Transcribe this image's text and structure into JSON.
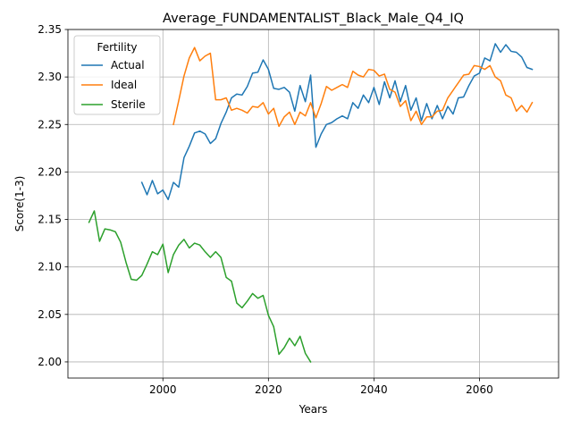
{
  "chart_data": {
    "type": "line",
    "title": "Average_FUNDAMENTALIST_Black_Male_Q4_IQ",
    "xlabel": "Years",
    "ylabel": "Score(1-3)",
    "xlim": [
      1982,
      2075
    ],
    "ylim": [
      1.983,
      2.35
    ],
    "xticks": [
      2000,
      2020,
      2040,
      2060
    ],
    "yticks": [
      2.0,
      2.05,
      2.1,
      2.15,
      2.2,
      2.25,
      2.3,
      2.35
    ],
    "xtick_labels": [
      "2000",
      "2020",
      "2040",
      "2060"
    ],
    "ytick_labels": [
      "2.00",
      "2.05",
      "2.10",
      "2.15",
      "2.20",
      "2.25",
      "2.30",
      "2.35"
    ],
    "grid": true,
    "legend": {
      "title": "Fertility",
      "placement": "top-left"
    },
    "series": [
      {
        "name": "Actual",
        "color": "#1f77b4",
        "x": [
          1996,
          1997,
          1998,
          1999,
          2000,
          2001,
          2002,
          2003,
          2004,
          2005,
          2006,
          2007,
          2008,
          2009,
          2010,
          2011,
          2012,
          2013,
          2014,
          2015,
          2016,
          2017,
          2018,
          2019,
          2020,
          2021,
          2022,
          2023,
          2024,
          2025,
          2026,
          2027,
          2028,
          2029,
          2030,
          2031,
          2032,
          2033,
          2034,
          2035,
          2036,
          2037,
          2038,
          2039,
          2040,
          2041,
          2042,
          2043,
          2044,
          2045,
          2046,
          2047,
          2048,
          2049,
          2050,
          2051,
          2052,
          2053,
          2054,
          2055,
          2056,
          2057,
          2058,
          2059,
          2060,
          2061,
          2062,
          2063,
          2064,
          2065,
          2066,
          2067,
          2068,
          2069,
          2070
        ],
        "y": [
          2.189,
          2.176,
          2.191,
          2.177,
          2.181,
          2.171,
          2.189,
          2.184,
          2.215,
          2.227,
          2.241,
          2.243,
          2.24,
          2.23,
          2.235,
          2.251,
          2.263,
          2.278,
          2.282,
          2.281,
          2.29,
          2.304,
          2.305,
          2.318,
          2.308,
          2.288,
          2.287,
          2.289,
          2.284,
          2.264,
          2.291,
          2.274,
          2.302,
          2.226,
          2.24,
          2.25,
          2.252,
          2.256,
          2.259,
          2.256,
          2.273,
          2.267,
          2.281,
          2.273,
          2.289,
          2.271,
          2.295,
          2.278,
          2.296,
          2.274,
          2.291,
          2.265,
          2.278,
          2.254,
          2.272,
          2.256,
          2.27,
          2.256,
          2.269,
          2.261,
          2.278,
          2.279,
          2.291,
          2.301,
          2.304,
          2.32,
          2.317,
          2.335,
          2.326,
          2.334,
          2.327,
          2.326,
          2.321,
          2.31,
          2.308
        ]
      },
      {
        "name": "Ideal",
        "color": "#ff7f0e",
        "x": [
          2002,
          2003,
          2004,
          2005,
          2006,
          2007,
          2008,
          2009,
          2010,
          2011,
          2012,
          2013,
          2014,
          2015,
          2016,
          2017,
          2018,
          2019,
          2020,
          2021,
          2022,
          2023,
          2024,
          2025,
          2026,
          2027,
          2028,
          2029,
          2030,
          2031,
          2032,
          2033,
          2034,
          2035,
          2036,
          2037,
          2038,
          2039,
          2040,
          2041,
          2042,
          2043,
          2044,
          2045,
          2046,
          2047,
          2048,
          2049,
          2050,
          2051,
          2052,
          2053,
          2054,
          2055,
          2056,
          2057,
          2058,
          2059,
          2060,
          2061,
          2062,
          2063,
          2064,
          2065,
          2066,
          2067,
          2068,
          2069,
          2070
        ],
        "y": [
          2.25,
          2.275,
          2.301,
          2.32,
          2.331,
          2.317,
          2.322,
          2.325,
          2.276,
          2.276,
          2.278,
          2.265,
          2.267,
          2.265,
          2.262,
          2.269,
          2.268,
          2.273,
          2.261,
          2.267,
          2.248,
          2.258,
          2.263,
          2.25,
          2.263,
          2.259,
          2.273,
          2.257,
          2.272,
          2.29,
          2.286,
          2.289,
          2.292,
          2.289,
          2.306,
          2.302,
          2.3,
          2.308,
          2.307,
          2.301,
          2.303,
          2.287,
          2.284,
          2.269,
          2.275,
          2.254,
          2.264,
          2.25,
          2.258,
          2.258,
          2.264,
          2.265,
          2.278,
          2.286,
          2.294,
          2.302,
          2.303,
          2.312,
          2.311,
          2.308,
          2.312,
          2.3,
          2.296,
          2.281,
          2.278,
          2.264,
          2.27,
          2.263,
          2.273
        ]
      },
      {
        "name": "Sterile",
        "color": "#2ca02c",
        "x": [
          1986,
          1987,
          1988,
          1989,
          1990,
          1991,
          1992,
          1993,
          1994,
          1995,
          1996,
          1997,
          1998,
          1999,
          2000,
          2001,
          2002,
          2003,
          2004,
          2005,
          2006,
          2007,
          2008,
          2009,
          2010,
          2011,
          2012,
          2013,
          2014,
          2015,
          2016,
          2017,
          2018,
          2019,
          2020,
          2021,
          2022,
          2023,
          2024,
          2025,
          2026,
          2027,
          2028
        ],
        "y": [
          2.147,
          2.159,
          2.127,
          2.14,
          2.139,
          2.137,
          2.126,
          2.105,
          2.087,
          2.086,
          2.091,
          2.103,
          2.116,
          2.113,
          2.124,
          2.094,
          2.113,
          2.123,
          2.129,
          2.12,
          2.125,
          2.123,
          2.116,
          2.11,
          2.116,
          2.11,
          2.089,
          2.085,
          2.062,
          2.057,
          2.064,
          2.072,
          2.067,
          2.07,
          2.049,
          2.037,
          2.008,
          2.015,
          2.025,
          2.017,
          2.027,
          2.009,
          2.0
        ]
      }
    ]
  }
}
